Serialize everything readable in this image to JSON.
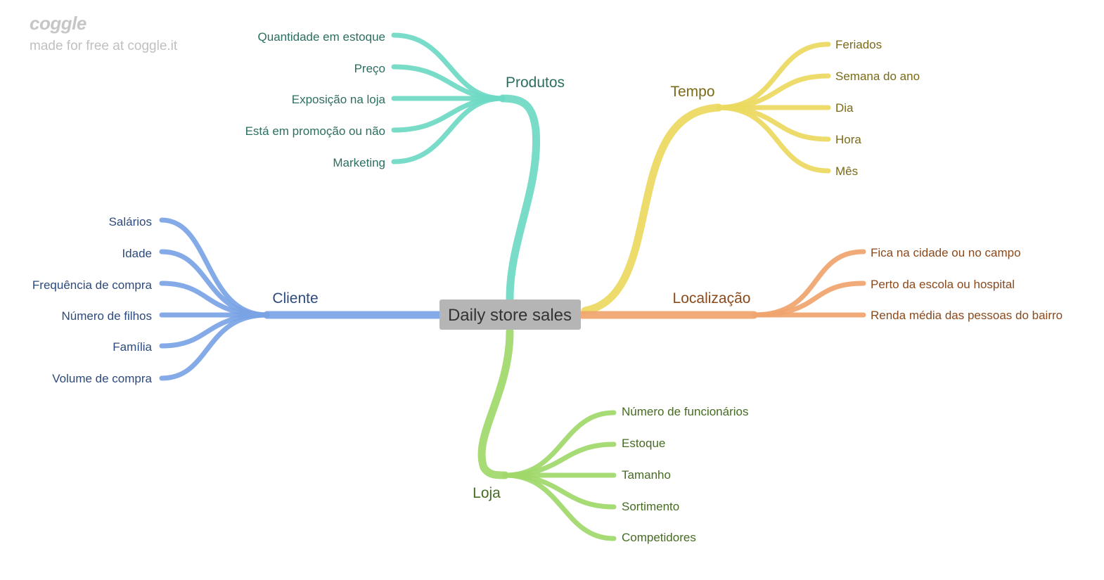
{
  "brand": {
    "logo": "coggle",
    "tagline": "made for free at coggle.it"
  },
  "center": {
    "label": "Daily store sales",
    "fill": "#b5b5b5",
    "text_color": "#333333"
  },
  "branches": {
    "produtos": {
      "label": "Produtos",
      "color": "#6dd9c3",
      "text_color": "#2c6e60",
      "leaves": [
        "Quantidade em estoque",
        "Preço",
        "Exposição na loja",
        "Está em promoção ou não",
        "Marketing"
      ]
    },
    "cliente": {
      "label": "Cliente",
      "color": "#7aa3e5",
      "text_color": "#2d4a7c",
      "leaves": [
        "Salários",
        "Idade",
        "Frequência de compra",
        "Número de filhos",
        "Família",
        "Volume de compra"
      ]
    },
    "tempo": {
      "label": "Tempo",
      "color": "#ebd95f",
      "text_color": "#7a6a18",
      "leaves": [
        "Feriados",
        "Semana do ano",
        "Dia",
        "Hora",
        "Mês"
      ]
    },
    "localizacao": {
      "label": "Localização",
      "color": "#f0a46e",
      "text_color": "#8a4a1c",
      "leaves": [
        "Fica na cidade ou no campo",
        "Perto da escola ou hospital",
        "Renda média das pessoas do bairro"
      ]
    },
    "loja": {
      "label": "Loja",
      "color": "#a0d86a",
      "text_color": "#466b22",
      "leaves": [
        "Número de funcionários",
        "Estoque",
        "Tamanho",
        "Sortimento",
        "Competidores"
      ]
    }
  }
}
